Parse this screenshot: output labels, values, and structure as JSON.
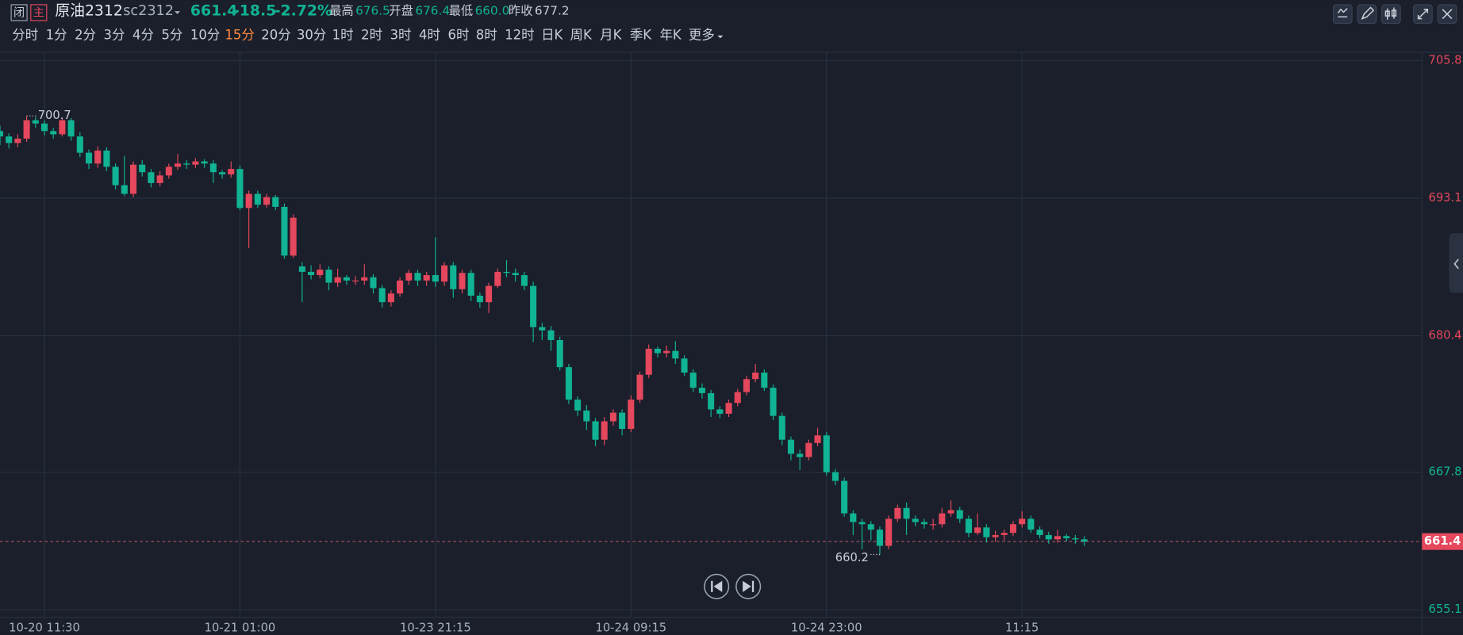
{
  "header": {
    "tags": [
      "闭",
      "主"
    ],
    "name": "原油2312",
    "code": "sc2312",
    "price": "661.4",
    "change": "-18.5",
    "change_pct": "-2.72%",
    "stats": [
      {
        "label": "最高",
        "value": "676.5"
      },
      {
        "label": "开盘",
        "value": "676.4"
      },
      {
        "label": "最低",
        "value": "660.0"
      }
    ],
    "prev_close_label": "昨收",
    "prev_close": 677.2
  },
  "tabs": [
    "分时",
    "1分",
    "2分",
    "3分",
    "4分",
    "5分",
    "10分",
    "15分",
    "20分",
    "30分",
    "1时",
    "2时",
    "3时",
    "4时",
    "6时",
    "8时",
    "12时",
    "日K",
    "周K",
    "月K",
    "季K",
    "年K",
    "更多"
  ],
  "active_tab_index": 7,
  "chart_data": {
    "type": "candlestick",
    "up_color": "#e5475c",
    "down_color": "#10b393",
    "open": [
      699.3,
      698.8,
      698.2,
      698.6,
      700.3,
      700.0,
      699.3,
      699.0,
      700.3,
      698.8,
      697.3,
      696.3,
      697.5,
      696.0,
      694.3,
      693.5,
      696.2,
      695.5,
      694.5,
      695.2,
      696.0,
      696.3,
      696.2,
      696.5,
      696.3,
      695.5,
      695.3,
      695.8,
      692.2,
      693.5,
      692.5,
      693.2,
      692.3,
      687.8,
      686.8,
      686.3,
      686.0,
      686.5,
      685.3,
      685.8,
      685.5,
      685.5,
      685.8,
      684.8,
      683.5,
      684.3,
      685.5,
      686.2,
      685.5,
      686.0,
      685.4,
      686.9,
      684.7,
      686.2,
      684.1,
      683.5,
      685.0,
      686.3,
      686.2,
      686.0,
      685.0,
      681.2,
      680.9,
      680.0,
      677.5,
      674.5,
      673.5,
      672.5,
      670.8,
      672.5,
      673.3,
      671.8,
      674.5,
      676.8,
      679.2,
      678.8,
      679.0,
      678.3,
      677.0,
      675.6,
      675.1,
      673.6,
      673.2,
      674.2,
      675.2,
      676.4,
      677.0,
      675.6,
      673.0,
      670.8,
      669.5,
      669.2,
      670.5,
      671.2,
      667.8,
      667.0,
      664.0,
      663.2,
      663.0,
      662.5,
      661.0,
      663.5,
      664.5,
      663.5,
      663.2,
      663.0,
      663.0,
      664.0,
      664.3,
      663.5,
      662.2,
      662.7,
      661.8,
      662.0,
      662.2,
      663.0,
      663.5,
      662.5,
      662.0,
      661.6,
      661.9,
      661.7,
      661.6
    ],
    "high": [
      699.8,
      699.1,
      699.0,
      700.7,
      700.6,
      700.3,
      699.6,
      700.5,
      700.5,
      699.2,
      697.6,
      697.9,
      697.8,
      696.3,
      697.0,
      696.5,
      696.6,
      695.8,
      695.6,
      696.3,
      697.2,
      696.6,
      696.8,
      696.7,
      696.6,
      695.7,
      696.5,
      696.1,
      693.8,
      693.8,
      693.5,
      693.4,
      692.6,
      691.6,
      687.2,
      686.9,
      687.0,
      686.8,
      686.6,
      686.0,
      685.9,
      687.0,
      686.1,
      685.1,
      684.6,
      685.8,
      686.5,
      686.5,
      686.3,
      689.5,
      687.2,
      687.2,
      686.5,
      686.5,
      684.4,
      685.3,
      686.6,
      687.4,
      686.6,
      686.3,
      685.4,
      681.6,
      681.3,
      680.3,
      677.8,
      674.8,
      674.0,
      672.8,
      672.9,
      673.6,
      673.6,
      674.9,
      677.1,
      679.6,
      679.4,
      679.5,
      679.9,
      678.6,
      677.3,
      676.0,
      675.4,
      673.9,
      674.5,
      675.5,
      676.7,
      677.8,
      677.3,
      675.9,
      673.3,
      671.1,
      669.9,
      670.8,
      671.9,
      671.5,
      668.1,
      667.3,
      664.3,
      663.5,
      663.3,
      662.8,
      663.8,
      664.8,
      665.0,
      663.8,
      663.5,
      663.5,
      664.5,
      665.2,
      664.6,
      663.8,
      664.0,
      663.0,
      662.4,
      662.5,
      663.3,
      664.2,
      663.8,
      662.8,
      662.3,
      662.5,
      662.1,
      662.0,
      661.9
    ],
    "low": [
      698.0,
      697.7,
      697.8,
      698.3,
      699.6,
      698.9,
      698.6,
      698.8,
      698.4,
      696.9,
      695.8,
      695.9,
      695.6,
      693.9,
      693.3,
      693.2,
      695.1,
      694.1,
      694.2,
      694.9,
      695.7,
      695.8,
      695.9,
      695.9,
      694.5,
      694.9,
      695.0,
      692.0,
      688.5,
      692.2,
      692.2,
      692.0,
      687.5,
      687.6,
      683.5,
      685.6,
      685.7,
      684.6,
      684.9,
      685.1,
      685.1,
      685.1,
      684.3,
      683.0,
      683.1,
      684.0,
      685.1,
      685.0,
      685.0,
      684.9,
      685.0,
      683.9,
      684.3,
      683.6,
      683.0,
      682.5,
      684.8,
      685.8,
      685.4,
      684.6,
      679.8,
      680.0,
      679.0,
      677.2,
      674.1,
      673.0,
      671.7,
      670.2,
      670.3,
      672.1,
      671.2,
      671.5,
      674.2,
      676.5,
      678.4,
      678.4,
      677.8,
      676.7,
      675.2,
      674.6,
      672.9,
      672.8,
      672.9,
      673.9,
      674.9,
      676.1,
      675.3,
      672.6,
      670.3,
      668.9,
      668.0,
      668.9,
      670.2,
      667.5,
      666.6,
      663.7,
      662.0,
      660.7,
      661.5,
      660.2,
      660.7,
      663.2,
      662.0,
      662.8,
      662.6,
      662.5,
      662.7,
      663.7,
      663.1,
      661.8,
      662.0,
      661.3,
      661.4,
      661.5,
      661.9,
      662.7,
      662.2,
      661.7,
      661.2,
      661.3,
      661.4,
      661.2,
      661.0
    ],
    "close": [
      698.8,
      698.2,
      698.6,
      700.3,
      700.0,
      699.3,
      699.0,
      700.3,
      698.8,
      697.3,
      696.3,
      697.5,
      696.0,
      694.3,
      693.5,
      696.2,
      695.5,
      694.5,
      695.2,
      696.0,
      696.3,
      696.2,
      696.5,
      696.3,
      695.5,
      695.3,
      695.8,
      692.2,
      693.5,
      692.5,
      693.2,
      692.3,
      687.8,
      691.3,
      686.3,
      686.0,
      686.5,
      685.3,
      685.8,
      685.5,
      685.5,
      685.8,
      684.8,
      683.5,
      684.3,
      685.5,
      686.2,
      685.5,
      686.0,
      685.4,
      686.9,
      684.7,
      686.2,
      684.1,
      683.5,
      685.0,
      686.3,
      686.2,
      686.0,
      685.0,
      681.2,
      680.9,
      680.0,
      677.5,
      674.5,
      673.5,
      672.5,
      670.8,
      672.5,
      673.3,
      671.8,
      674.5,
      676.8,
      679.2,
      678.8,
      679.0,
      678.3,
      677.0,
      675.6,
      675.1,
      673.6,
      673.2,
      674.2,
      675.2,
      676.4,
      677.0,
      675.6,
      673.0,
      670.8,
      669.5,
      669.2,
      670.5,
      671.2,
      667.8,
      667.0,
      664.0,
      663.2,
      663.0,
      662.5,
      661.0,
      663.5,
      664.5,
      663.5,
      663.2,
      663.0,
      663.0,
      664.0,
      664.3,
      663.5,
      662.2,
      662.7,
      661.8,
      662.0,
      662.2,
      663.0,
      663.5,
      662.5,
      662.0,
      661.6,
      661.9,
      661.7,
      661.6,
      661.4
    ],
    "xlim": [
      0,
      160
    ],
    "xticks": [
      {
        "value": 5,
        "label": "10-20 11:30"
      },
      {
        "value": 27,
        "label": "10-21 01:00"
      },
      {
        "value": 49,
        "label": "10-23 21:15"
      },
      {
        "value": 71,
        "label": "10-24 09:15"
      },
      {
        "value": 93,
        "label": "10-24 23:00"
      },
      {
        "value": 115,
        "label": "11:15"
      }
    ],
    "ylim": [
      655.1,
      705.8
    ],
    "yticks": [
      655.1,
      667.8,
      680.4,
      693.1,
      705.8
    ],
    "max_index": 3,
    "min_index": 99,
    "grid": true
  }
}
